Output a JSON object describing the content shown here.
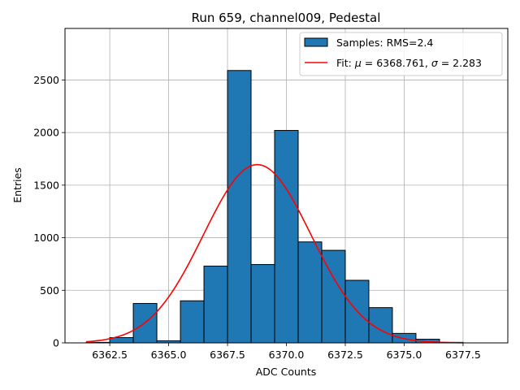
{
  "chart_data": {
    "type": "bar",
    "title": "Run 659, channel009, Pedestal",
    "xlabel": "ADC Counts",
    "ylabel": "Entries",
    "xlim": [
      6360.6,
      6379.4
    ],
    "ylim": [
      0,
      2990
    ],
    "xticks": [
      6362.5,
      6365.0,
      6367.5,
      6370.0,
      6372.5,
      6375.0,
      6377.5
    ],
    "xtick_labels": [
      "6362.5",
      "6365.0",
      "6367.5",
      "6370.0",
      "6372.5",
      "6375.0",
      "6377.5"
    ],
    "yticks": [
      0,
      500,
      1000,
      1500,
      2000,
      2500
    ],
    "ytick_labels": [
      "0",
      "500",
      "1000",
      "1500",
      "2000",
      "2500"
    ],
    "grid": true,
    "legend_position": "top-right",
    "bar_color": "#1f77b4",
    "fit_color": "#ff0000",
    "bin_width": 1.0,
    "bins": [
      {
        "left": 6361.5,
        "value": 5
      },
      {
        "left": 6362.5,
        "value": 50
      },
      {
        "left": 6363.5,
        "value": 375
      },
      {
        "left": 6364.5,
        "value": 20
      },
      {
        "left": 6365.5,
        "value": 400
      },
      {
        "left": 6366.5,
        "value": 730
      },
      {
        "left": 6367.5,
        "value": 2590
      },
      {
        "left": 6368.5,
        "value": 745
      },
      {
        "left": 6369.5,
        "value": 2020
      },
      {
        "left": 6370.5,
        "value": 960
      },
      {
        "left": 6371.5,
        "value": 880
      },
      {
        "left": 6372.5,
        "value": 595
      },
      {
        "left": 6373.5,
        "value": 335
      },
      {
        "left": 6374.5,
        "value": 90
      },
      {
        "left": 6375.5,
        "value": 35
      },
      {
        "left": 6376.5,
        "value": 5
      }
    ],
    "fit": {
      "mu": 6368.761,
      "sigma": 2.283,
      "amplitude": 1695,
      "x_range": [
        6361.5,
        6377.5
      ]
    },
    "legend": {
      "samples_label": "Samples: RMS=2.4",
      "fit_prefix": "Fit: ",
      "fit_mu_symbol": "μ",
      "fit_mu_value": " = 6368.761, ",
      "fit_sigma_symbol": "σ",
      "fit_sigma_value": " = 2.283"
    }
  }
}
